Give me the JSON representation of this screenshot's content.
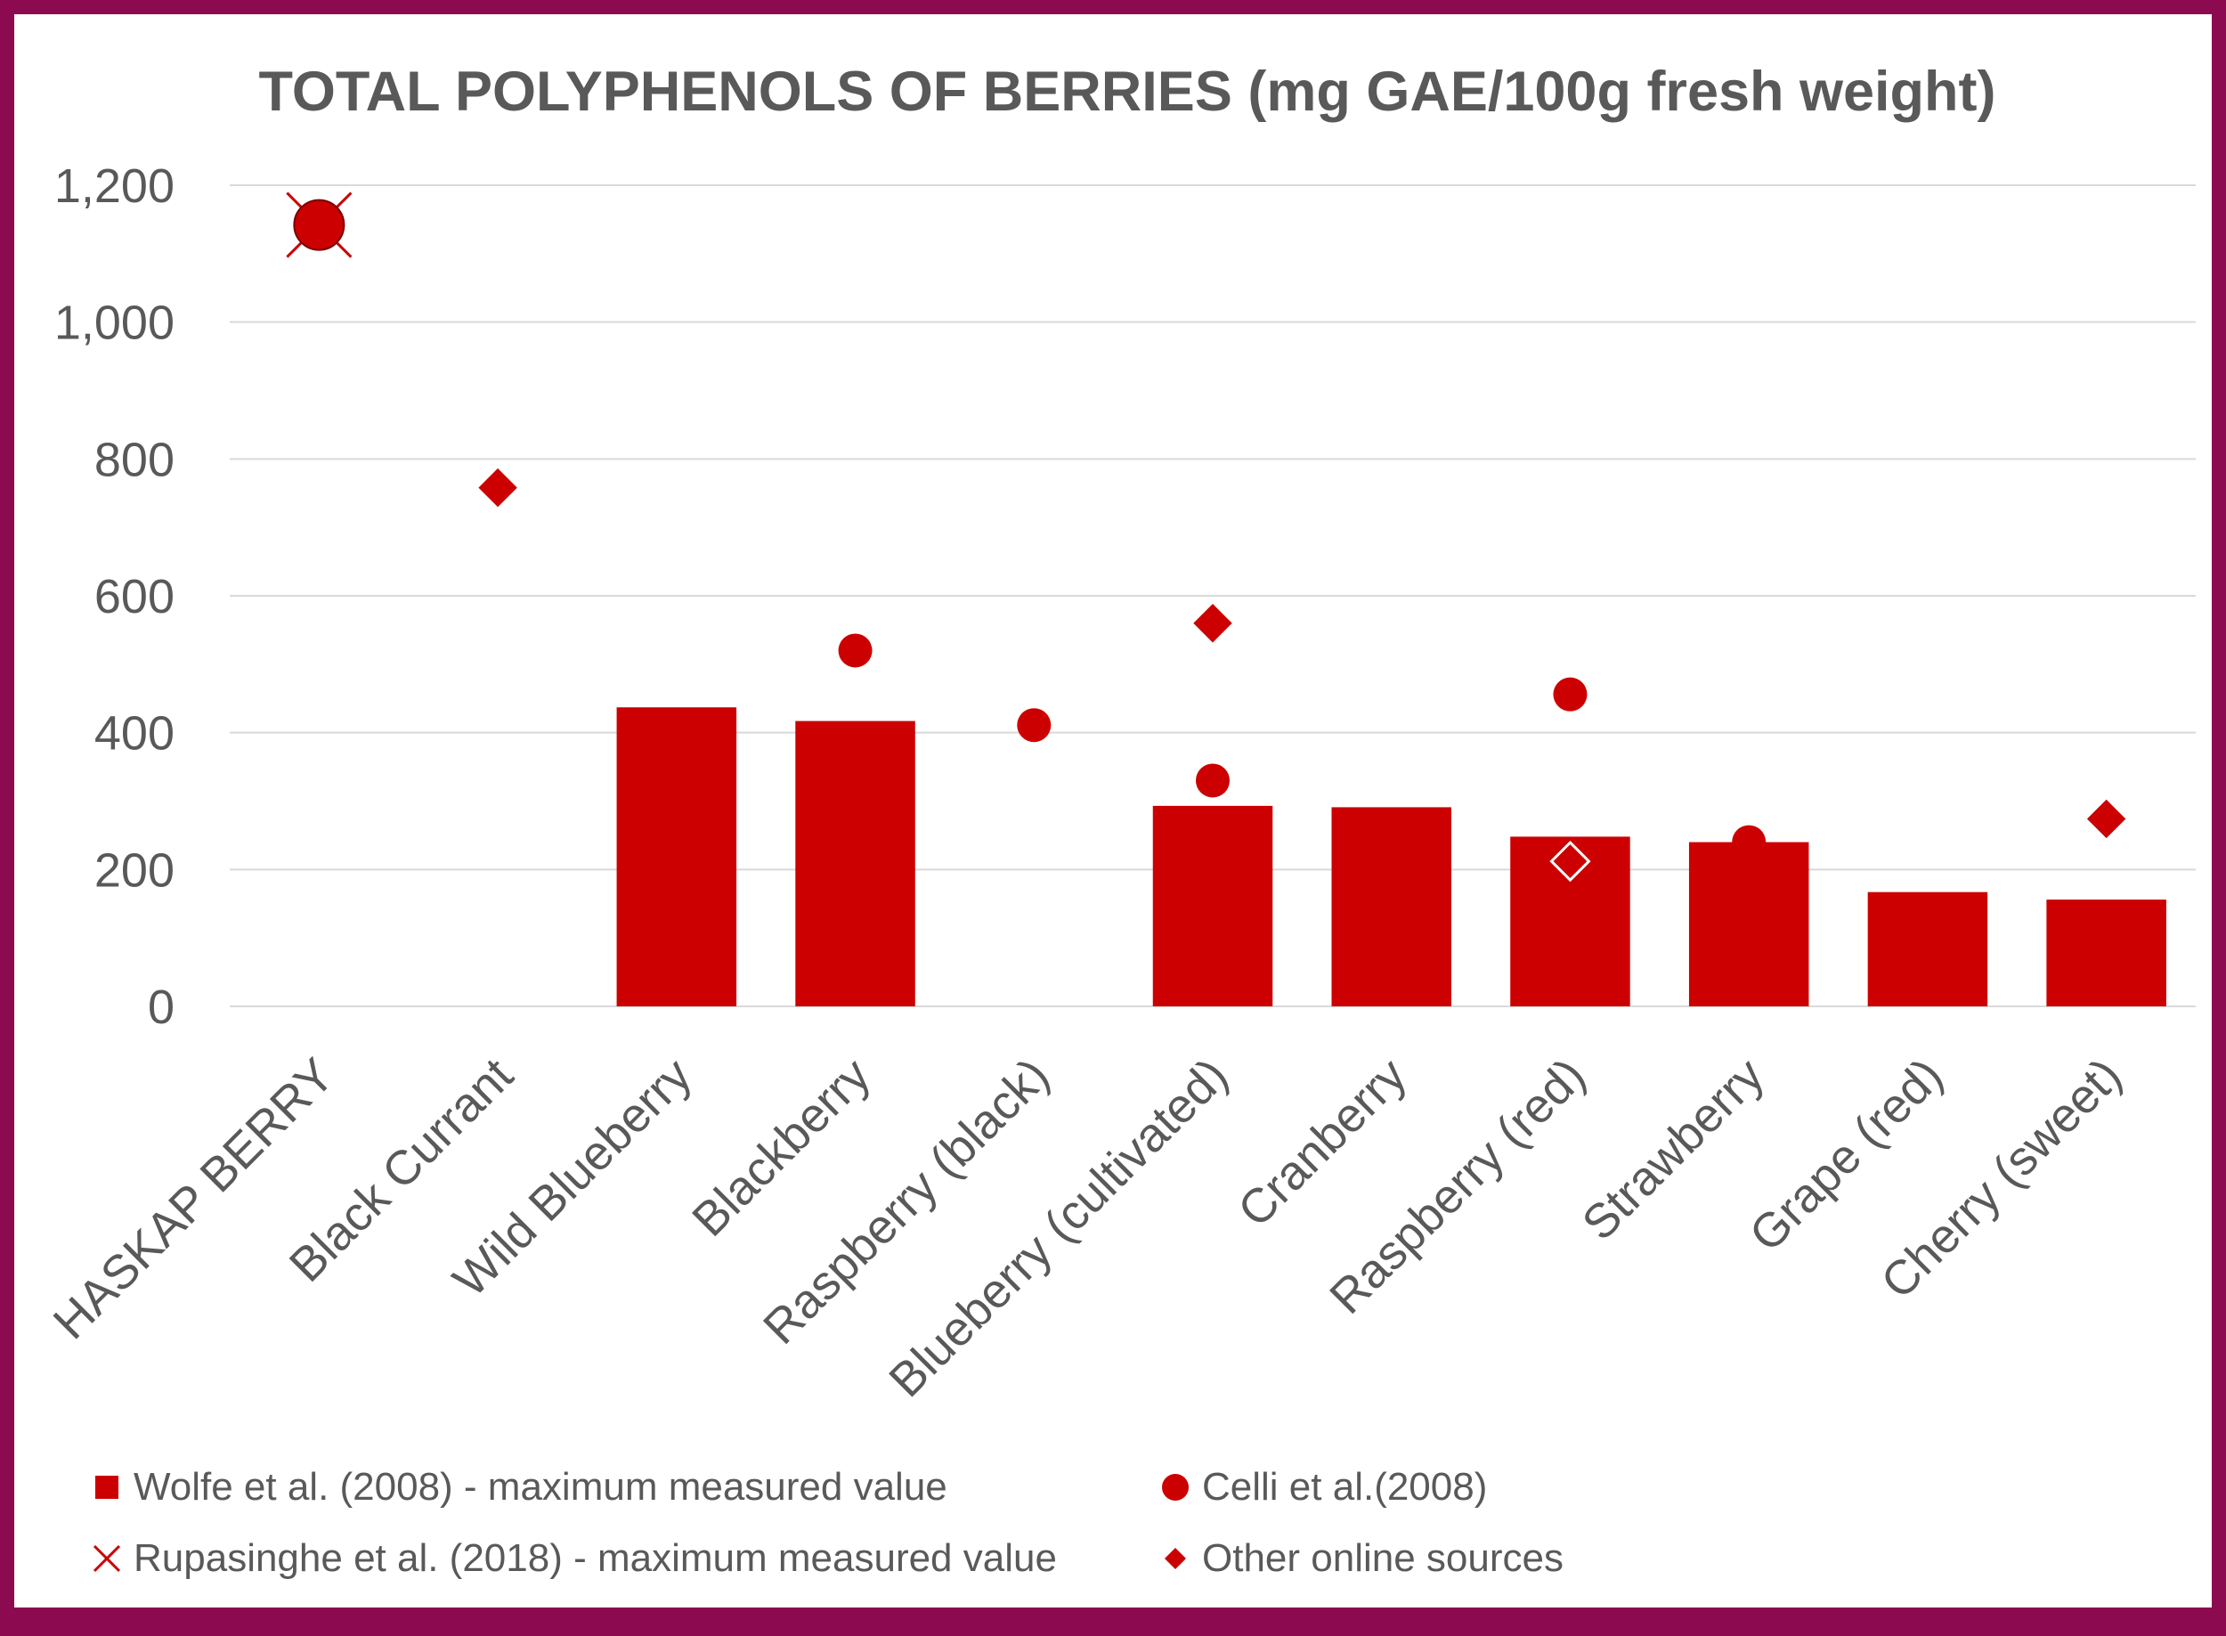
{
  "chart_data": {
    "type": "bar",
    "title": "TOTAL POLYPHENOLS OF BERRIES (mg GAE/100g fresh weight)",
    "xlabel": "",
    "ylabel": "",
    "ylim": [
      0,
      1200
    ],
    "yticks": [
      0,
      200,
      400,
      600,
      800,
      1000,
      1200
    ],
    "ytick_labels": [
      "0",
      "200",
      "400",
      "600",
      "800",
      "1,000",
      "1,200"
    ],
    "grid": true,
    "legend_position": "bottom",
    "categories": [
      "HASKAP BERRY",
      "Black Currant",
      "Wild Blueberry",
      "Blackberry",
      "Raspberry (black)",
      "Blueberry (cultivated)",
      "Cranberry",
      "Raspberry (red)",
      "Strawberry",
      "Grape (red)",
      "Cherry (sweet)"
    ],
    "series": [
      {
        "name": "Wolfe et al. (2008) - maximum measured value",
        "kind": "bar",
        "marker": "square",
        "color": "#cc0000",
        "values": [
          null,
          null,
          437,
          417,
          null,
          293,
          291,
          248,
          240,
          167,
          156
        ]
      },
      {
        "name": "Celli et al.(2008)",
        "kind": "scatter",
        "marker": "circle",
        "color": "#cc0000",
        "values": [
          1142,
          null,
          null,
          520,
          411,
          330,
          null,
          456,
          240,
          null,
          null
        ]
      },
      {
        "name": "Rupasinghe et al. (2018) - maximum measured value",
        "kind": "scatter",
        "marker": "x",
        "color": "#cc0000",
        "values": [
          1142,
          null,
          null,
          null,
          null,
          null,
          null,
          null,
          null,
          null,
          null
        ]
      },
      {
        "name": "Other online sources",
        "kind": "scatter",
        "marker": "diamond",
        "color": "#cc0000",
        "values": [
          null,
          758,
          null,
          null,
          null,
          560,
          null,
          212,
          null,
          null,
          274
        ],
        "hollow_index": 7
      }
    ]
  }
}
